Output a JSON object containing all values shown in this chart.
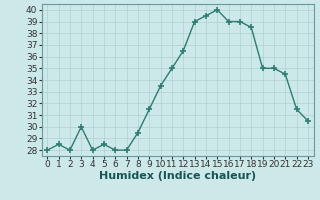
{
  "x": [
    0,
    1,
    2,
    3,
    4,
    5,
    6,
    7,
    8,
    9,
    10,
    11,
    12,
    13,
    14,
    15,
    16,
    17,
    18,
    19,
    20,
    21,
    22,
    23
  ],
  "y": [
    28,
    28.5,
    28,
    30,
    28,
    28.5,
    28,
    28,
    29.5,
    31.5,
    33.5,
    35,
    36.5,
    39,
    39.5,
    40,
    39,
    39,
    38.5,
    35,
    35,
    34.5,
    31.5,
    30.5
  ],
  "xlabel": "Humidex (Indice chaleur)",
  "ylim": [
    27.5,
    40.5
  ],
  "xlim": [
    -0.5,
    23.5
  ],
  "yticks": [
    28,
    29,
    30,
    31,
    32,
    33,
    34,
    35,
    36,
    37,
    38,
    39,
    40
  ],
  "xticks": [
    0,
    1,
    2,
    3,
    4,
    5,
    6,
    7,
    8,
    9,
    10,
    11,
    12,
    13,
    14,
    15,
    16,
    17,
    18,
    19,
    20,
    21,
    22,
    23
  ],
  "line_color": "#2e7d6e",
  "marker": "+",
  "marker_size": 5,
  "bg_color": "#cce8e8",
  "grid_color": "#b0d0d0",
  "tick_label_fontsize": 6.5,
  "xlabel_fontsize": 8,
  "spine_color": "#6a9a9a"
}
